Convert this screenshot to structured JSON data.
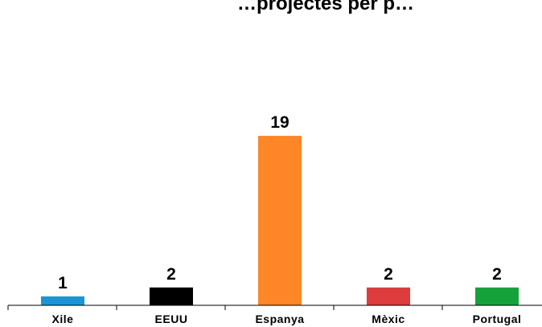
{
  "chart_data": {
    "type": "bar",
    "title": "…projectes per p…",
    "categories": [
      "Xile",
      "EEUU",
      "Espanya",
      "Mèxic",
      "Portugal"
    ],
    "values": [
      1,
      2,
      19,
      2,
      2
    ],
    "bar_colors": [
      "#1a96d2",
      "#000000",
      "#fd8627",
      "#dd3c3c",
      "#16a23b"
    ],
    "ylim": [
      0,
      19
    ],
    "grid": false,
    "legend": "none",
    "xlabel": "",
    "ylabel": ""
  }
}
